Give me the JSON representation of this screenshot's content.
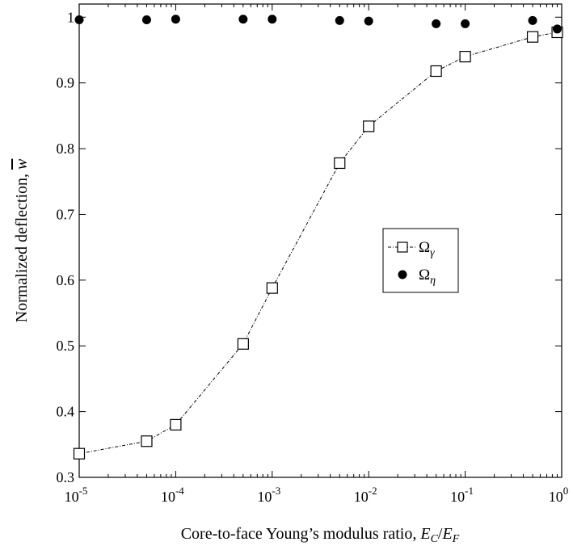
{
  "chart_data": {
    "type": "scatter",
    "x_scale": "log",
    "xlim": [
      1e-05,
      1
    ],
    "ylim": [
      0.3,
      1.02
    ],
    "grid": false,
    "legend_position": "center-right",
    "xlabel": "Core-to-face Young’s modulus ratio, ",
    "xlabel_math": {
      "E1": "E",
      "sub1": "C",
      "slash": "/",
      "E2": "E",
      "sub2": "F"
    },
    "ylabel": "Normalized deflection, ",
    "ylabel_math": "w",
    "x_tick_labels": [
      {
        "value": 1e-05,
        "base": "10",
        "exp": "-5"
      },
      {
        "value": 0.0001,
        "base": "10",
        "exp": "-4"
      },
      {
        "value": 0.001,
        "base": "10",
        "exp": "-3"
      },
      {
        "value": 0.01,
        "base": "10",
        "exp": "-2"
      },
      {
        "value": 0.1,
        "base": "10",
        "exp": "-1"
      },
      {
        "value": 1,
        "base": "10",
        "exp": "0"
      }
    ],
    "y_tick_labels": [
      "0.3",
      "0.4",
      "0.5",
      "0.6",
      "0.7",
      "0.8",
      "0.9",
      "1"
    ],
    "y_ticks": [
      0.3,
      0.4,
      0.5,
      0.6,
      0.7,
      0.8,
      0.9,
      1.0
    ],
    "series": [
      {
        "name_symbol": "Ω",
        "name_subscript": "γ",
        "marker": "open-square",
        "line": "dash-dot",
        "color": "#000000",
        "points": [
          {
            "x": 1e-05,
            "y": 0.336
          },
          {
            "x": 5e-05,
            "y": 0.355
          },
          {
            "x": 0.0001,
            "y": 0.38
          },
          {
            "x": 0.0005,
            "y": 0.503
          },
          {
            "x": 0.001,
            "y": 0.588
          },
          {
            "x": 0.005,
            "y": 0.778
          },
          {
            "x": 0.01,
            "y": 0.834
          },
          {
            "x": 0.05,
            "y": 0.918
          },
          {
            "x": 0.1,
            "y": 0.94
          },
          {
            "x": 0.5,
            "y": 0.97
          },
          {
            "x": 0.9,
            "y": 0.977
          }
        ]
      },
      {
        "name_symbol": "Ω",
        "name_subscript": "η",
        "marker": "filled-circle",
        "line": "none",
        "color": "#000000",
        "points": [
          {
            "x": 1e-05,
            "y": 0.996
          },
          {
            "x": 5e-05,
            "y": 0.996
          },
          {
            "x": 0.0001,
            "y": 0.997
          },
          {
            "x": 0.0005,
            "y": 0.997
          },
          {
            "x": 0.001,
            "y": 0.997
          },
          {
            "x": 0.005,
            "y": 0.995
          },
          {
            "x": 0.01,
            "y": 0.994
          },
          {
            "x": 0.05,
            "y": 0.99
          },
          {
            "x": 0.1,
            "y": 0.99
          },
          {
            "x": 0.5,
            "y": 0.995
          },
          {
            "x": 0.9,
            "y": 0.982
          }
        ]
      }
    ]
  }
}
